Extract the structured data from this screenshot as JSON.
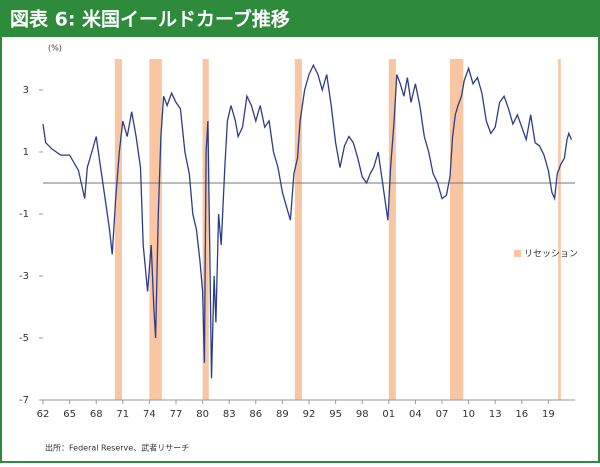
{
  "chart_data": {
    "type": "line",
    "title": "図表 6: 米国イールドカーブ推移",
    "y_label": "(%)",
    "source": "出所：Federal Reserve、武者リサーチ",
    "xlim": [
      1962,
      2022
    ],
    "ylim": [
      -7,
      4
    ],
    "yticks": [
      3,
      1,
      -1,
      -3,
      -5,
      -7
    ],
    "xticks": [
      {
        "value": 1962,
        "label": "62"
      },
      {
        "value": 1965,
        "label": "65"
      },
      {
        "value": 1968,
        "label": "68"
      },
      {
        "value": 1971,
        "label": "71"
      },
      {
        "value": 1974,
        "label": "74"
      },
      {
        "value": 1977,
        "label": "77"
      },
      {
        "value": 1980,
        "label": "80"
      },
      {
        "value": 1983,
        "label": "83"
      },
      {
        "value": 1986,
        "label": "86"
      },
      {
        "value": 1989,
        "label": "89"
      },
      {
        "value": 1992,
        "label": "92"
      },
      {
        "value": 1995,
        "label": "95"
      },
      {
        "value": 1998,
        "label": "98"
      },
      {
        "value": 2001,
        "label": "01"
      },
      {
        "value": 2004,
        "label": "04"
      },
      {
        "value": 2007,
        "label": "07"
      },
      {
        "value": 2010,
        "label": "10"
      },
      {
        "value": 2013,
        "label": "13"
      },
      {
        "value": 2016,
        "label": "16"
      },
      {
        "value": 2019,
        "label": "19"
      }
    ],
    "hline": 0,
    "recession": {
      "name": "リセッション",
      "color": "#f8c6a2",
      "spans": [
        [
          1970.1,
          1970.9
        ],
        [
          1974.0,
          1975.4
        ],
        [
          1980.0,
          1980.7
        ],
        [
          1990.4,
          1991.2
        ],
        [
          2001.0,
          2001.8
        ],
        [
          2007.9,
          2009.4
        ],
        [
          2020.1,
          2020.4
        ]
      ]
    },
    "series": [
      {
        "name": "イールドカーブ",
        "color": "#2b3d8a",
        "x": [
          1962.0,
          1962.3,
          1963,
          1964,
          1965,
          1966,
          1966.7,
          1967,
          1967.5,
          1968,
          1968.5,
          1969,
          1969.5,
          1969.8,
          1970.2,
          1970.6,
          1971,
          1971.5,
          1972,
          1972.5,
          1973,
          1973.3,
          1973.8,
          1974.2,
          1974.5,
          1974.7,
          1975,
          1975.3,
          1975.6,
          1976,
          1976.5,
          1977,
          1977.5,
          1978,
          1978.5,
          1978.9,
          1979.3,
          1979.7,
          1980.0,
          1980.2,
          1980.4,
          1980.6,
          1980.8,
          1981.0,
          1981.3,
          1981.5,
          1981.8,
          1982.1,
          1982.5,
          1982.8,
          1983.2,
          1983.7,
          1984,
          1984.5,
          1985,
          1985.5,
          1986,
          1986.5,
          1987,
          1987.5,
          1988,
          1988.5,
          1989,
          1989.5,
          1989.9,
          1990.3,
          1990.7,
          1991,
          1991.5,
          1992,
          1992.5,
          1993,
          1993.5,
          1994,
          1994.5,
          1995,
          1995.5,
          1996,
          1996.5,
          1997,
          1997.5,
          1998,
          1998.5,
          1998.9,
          1999.3,
          1999.8,
          2000.3,
          2000.7,
          2000.9,
          2001.2,
          2001.6,
          2001.9,
          2002.3,
          2002.7,
          2003.1,
          2003.5,
          2004.0,
          2004.5,
          2005.0,
          2005.5,
          2006.0,
          2006.5,
          2007.0,
          2007.5,
          2007.9,
          2008.2,
          2008.5,
          2008.8,
          2009.2,
          2009.5,
          2010.0,
          2010.5,
          2011.0,
          2011.5,
          2012.0,
          2012.5,
          2013.0,
          2013.5,
          2014.0,
          2014.5,
          2015.0,
          2015.5,
          2016.0,
          2016.5,
          2017.0,
          2017.5,
          2018.0,
          2018.5,
          2019.0,
          2019.4,
          2019.7,
          2020.0,
          2020.4,
          2020.8,
          2021.1,
          2021.3,
          2021.6
        ],
        "values": [
          1.9,
          1.3,
          1.1,
          0.9,
          0.9,
          0.4,
          -0.5,
          0.5,
          1.0,
          1.5,
          0.5,
          -0.5,
          -1.5,
          -2.3,
          -0.5,
          1.0,
          2.0,
          1.5,
          2.3,
          1.5,
          0.5,
          -2.0,
          -3.5,
          -2.0,
          -4.0,
          -5.0,
          -1.0,
          1.5,
          2.8,
          2.5,
          2.9,
          2.6,
          2.4,
          1.0,
          0.3,
          -1.0,
          -1.5,
          -2.5,
          -3.5,
          -5.8,
          1.0,
          2.0,
          -2.0,
          -6.3,
          -3.0,
          -4.5,
          -1.0,
          -2.0,
          0.5,
          2.0,
          2.5,
          2.0,
          1.5,
          1.8,
          2.8,
          2.5,
          2.0,
          2.5,
          1.8,
          2.0,
          1.0,
          0.5,
          -0.3,
          -0.8,
          -1.2,
          0.3,
          0.8,
          2.0,
          3.0,
          3.5,
          3.8,
          3.5,
          3.0,
          3.5,
          2.5,
          1.3,
          0.5,
          1.2,
          1.5,
          1.3,
          0.8,
          0.2,
          0.0,
          0.3,
          0.5,
          1.0,
          0.0,
          -0.8,
          -1.2,
          0.5,
          2.0,
          3.5,
          3.2,
          2.8,
          3.4,
          2.6,
          3.2,
          2.5,
          1.5,
          1.0,
          0.3,
          0.0,
          -0.5,
          -0.4,
          0.2,
          1.5,
          2.2,
          2.5,
          2.8,
          3.3,
          3.7,
          3.2,
          3.4,
          2.9,
          2.0,
          1.6,
          1.8,
          2.6,
          2.8,
          2.4,
          1.9,
          2.2,
          1.8,
          1.4,
          2.2,
          1.3,
          1.2,
          0.9,
          0.4,
          -0.3,
          -0.5,
          0.3,
          0.6,
          0.8,
          1.4,
          1.6,
          1.4
        ]
      }
    ]
  }
}
